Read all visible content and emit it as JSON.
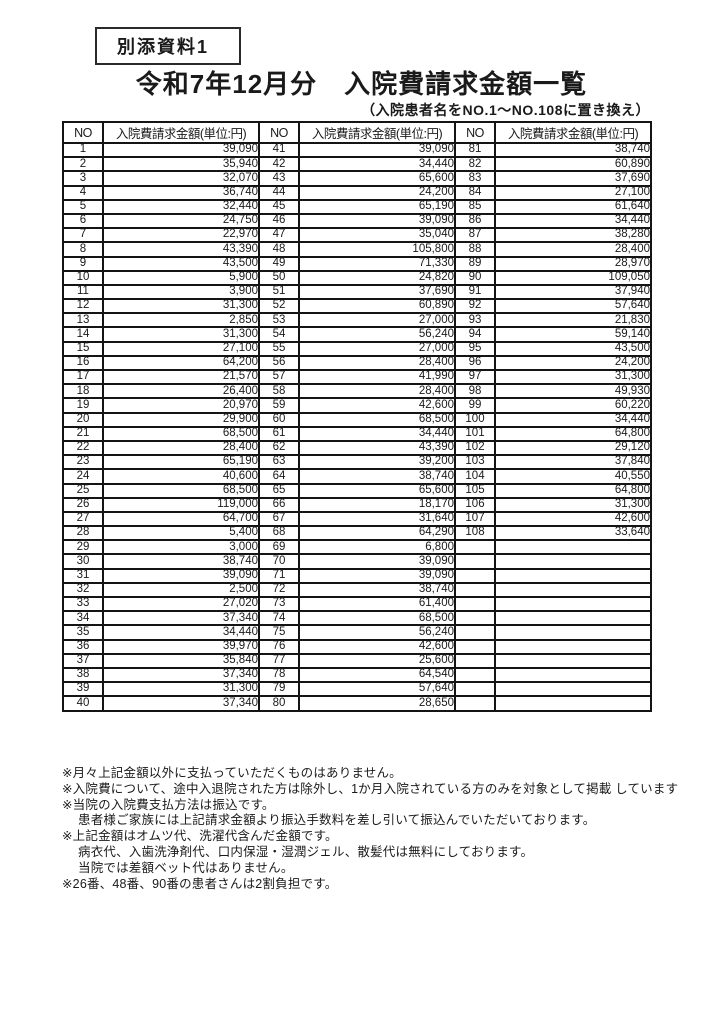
{
  "page": {
    "doc_label": "別添資料1",
    "title": "令和7年12月分　入院費請求金額一覧",
    "subtitle": "（入院患者名をNO.1～NO.108に置き換え）"
  },
  "table": {
    "headers": [
      "NO",
      "入院費請求金額(単位:円)",
      "NO",
      "入院費請求金額(単位:円)",
      "NO",
      "入院費請求金額(単位:円)"
    ],
    "rows": [
      [
        "1",
        "39,090",
        "41",
        "39,090",
        "81",
        "38,740"
      ],
      [
        "2",
        "35,940",
        "42",
        "34,440",
        "82",
        "60,890"
      ],
      [
        "3",
        "32,070",
        "43",
        "65,600",
        "83",
        "37,690"
      ],
      [
        "4",
        "36,740",
        "44",
        "24,200",
        "84",
        "27,100"
      ],
      [
        "5",
        "32,440",
        "45",
        "65,190",
        "85",
        "61,640"
      ],
      [
        "6",
        "24,750",
        "46",
        "39,090",
        "86",
        "34,440"
      ],
      [
        "7",
        "22,970",
        "47",
        "35,040",
        "87",
        "38,280"
      ],
      [
        "8",
        "43,390",
        "48",
        "105,800",
        "88",
        "28,400"
      ],
      [
        "9",
        "43,500",
        "49",
        "71,330",
        "89",
        "28,970"
      ],
      [
        "10",
        "5,900",
        "50",
        "24,820",
        "90",
        "109,050"
      ],
      [
        "11",
        "3,900",
        "51",
        "37,690",
        "91",
        "37,940"
      ],
      [
        "12",
        "31,300",
        "52",
        "60,890",
        "92",
        "57,640"
      ],
      [
        "13",
        "2,850",
        "53",
        "27,000",
        "93",
        "21,830"
      ],
      [
        "14",
        "31,300",
        "54",
        "56,240",
        "94",
        "59,140"
      ],
      [
        "15",
        "27,100",
        "55",
        "27,000",
        "95",
        "43,500"
      ],
      [
        "16",
        "64,200",
        "56",
        "28,400",
        "96",
        "24,200"
      ],
      [
        "17",
        "21,570",
        "57",
        "41,990",
        "97",
        "31,300"
      ],
      [
        "18",
        "26,400",
        "58",
        "28,400",
        "98",
        "49,930"
      ],
      [
        "19",
        "20,970",
        "59",
        "42,600",
        "99",
        "60,220"
      ],
      [
        "20",
        "29,900",
        "60",
        "68,500",
        "100",
        "34,440"
      ],
      [
        "21",
        "68,500",
        "61",
        "34,440",
        "101",
        "64,800"
      ],
      [
        "22",
        "28,400",
        "62",
        "43,390",
        "102",
        "29,120"
      ],
      [
        "23",
        "65,190",
        "63",
        "39,200",
        "103",
        "37,840"
      ],
      [
        "24",
        "40,600",
        "64",
        "38,740",
        "104",
        "40,550"
      ],
      [
        "25",
        "68,500",
        "65",
        "65,600",
        "105",
        "64,800"
      ],
      [
        "26",
        "119,000",
        "66",
        "18,170",
        "106",
        "31,300"
      ],
      [
        "27",
        "64,700",
        "67",
        "31,640",
        "107",
        "42,600"
      ],
      [
        "28",
        "5,400",
        "68",
        "64,290",
        "108",
        "33,640"
      ],
      [
        "29",
        "3,000",
        "69",
        "6,800",
        "",
        ""
      ],
      [
        "30",
        "38,740",
        "70",
        "39,090",
        "",
        ""
      ],
      [
        "31",
        "39,090",
        "71",
        "39,090",
        "",
        ""
      ],
      [
        "32",
        "2,500",
        "72",
        "38,740",
        "",
        ""
      ],
      [
        "33",
        "27,020",
        "73",
        "61,400",
        "",
        ""
      ],
      [
        "34",
        "37,340",
        "74",
        "68,500",
        "",
        ""
      ],
      [
        "35",
        "34,440",
        "75",
        "56,240",
        "",
        ""
      ],
      [
        "36",
        "39,970",
        "76",
        "42,600",
        "",
        ""
      ],
      [
        "37",
        "35,840",
        "77",
        "25,600",
        "",
        ""
      ],
      [
        "38",
        "37,340",
        "78",
        "64,540",
        "",
        ""
      ],
      [
        "39",
        "31,300",
        "79",
        "57,640",
        "",
        ""
      ],
      [
        "40",
        "37,340",
        "80",
        "28,650",
        "",
        ""
      ]
    ]
  },
  "notes": [
    {
      "text": "※月々上記金額以外に支払っていただくものはありません。",
      "indent": false
    },
    {
      "text": "※入院費について、途中入退院された方は除外し、1か月入院されている方のみを対象として掲載 しています",
      "indent": false
    },
    {
      "text": "※当院の入院費支払方法は振込です。",
      "indent": false
    },
    {
      "text": "患者様ご家族には上記請求金額より振込手数料を差し引いて振込んでいただいております。",
      "indent": true
    },
    {
      "text": "※上記金額はオムツ代、洗濯代含んだ金額です。",
      "indent": false
    },
    {
      "text": "病衣代、入歯洗浄剤代、口内保湿・湿潤ジェル、散髪代は無料にしております。",
      "indent": true
    },
    {
      "text": "当院では差額ベット代はありません。",
      "indent": true
    },
    {
      "text": "※26番、48番、90番の患者さんは2割負担です。",
      "indent": false
    }
  ]
}
